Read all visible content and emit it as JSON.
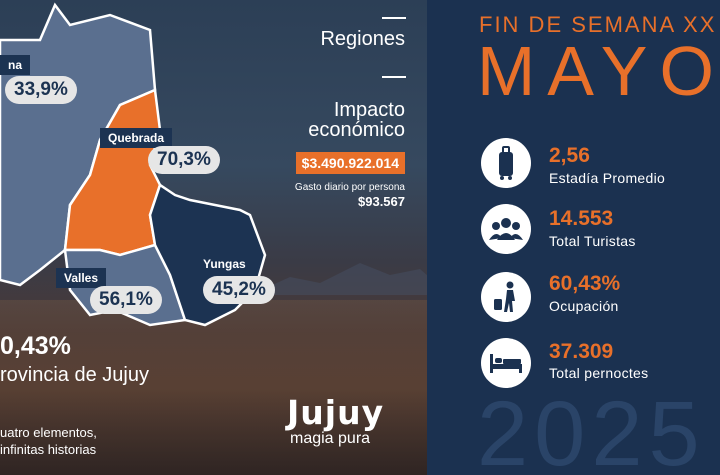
{
  "map": {
    "regions": [
      {
        "name": "Puna",
        "label": "na",
        "pct": "33,9%"
      },
      {
        "name": "Quebrada",
        "label": "Quebrada",
        "pct": "70,3%"
      },
      {
        "name": "Valles",
        "label": "Valles",
        "pct": "56,1%"
      },
      {
        "name": "Yungas",
        "label": "Yungas",
        "pct": "45,2%"
      }
    ],
    "regions_heading": "Regiones",
    "colors": {
      "highlight": "#e8702a",
      "region": "#5a6f8f",
      "dark_region": "#1c3352"
    }
  },
  "impact": {
    "heading_line1": "Impacto",
    "heading_line2": "económico",
    "amount": "$3.490.922.014",
    "daily_label": "Gasto diario por persona",
    "daily_value": "$93.567"
  },
  "province": {
    "pct": "0,43%",
    "name": "rovincia de Jujuy",
    "slogan_line1": "uatro elementos,",
    "slogan_line2": "infinitas historias"
  },
  "logo": {
    "word": "Jujuy",
    "tagline": "magia pura"
  },
  "header": {
    "event": "FIN DE SEMANA XX",
    "month": "MAYO",
    "year": "2025"
  },
  "stats": [
    {
      "icon": "suitcase-icon",
      "value": "2,56",
      "label": "Estadía Promedio"
    },
    {
      "icon": "people-icon",
      "value": "14.553",
      "label": "Total Turistas"
    },
    {
      "icon": "traveler-icon",
      "value": "60,43%",
      "label": "Ocupación"
    },
    {
      "icon": "bed-icon",
      "value": "37.309",
      "label": "Total pernoctes"
    }
  ],
  "accent": "#e8702a",
  "navy": "#1b3150"
}
